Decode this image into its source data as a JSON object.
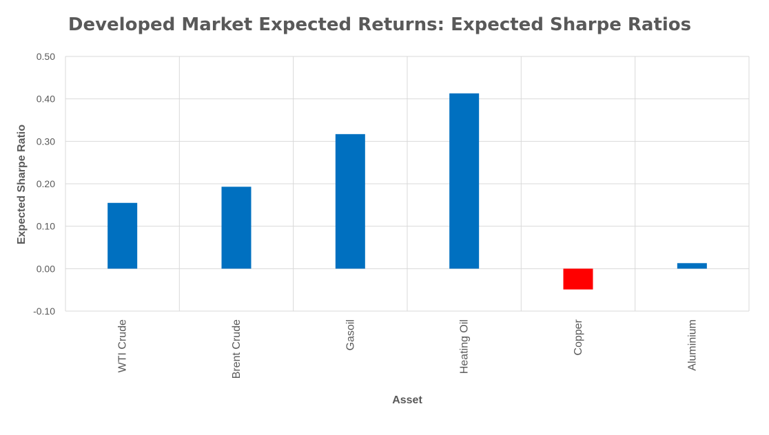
{
  "chart_data": {
    "type": "bar",
    "title": "Developed Market Expected Returns: Expected Sharpe Ratios",
    "xlabel": "Asset",
    "ylabel": "Expected Sharpe Ratio",
    "categories": [
      "WTI Crude",
      "Brent Crude",
      "Gasoil",
      "Heating Oil",
      "Copper",
      "Aluminium"
    ],
    "values": [
      0.155,
      0.193,
      0.317,
      0.413,
      -0.049,
      0.013
    ],
    "ylim": [
      -0.1,
      0.5
    ],
    "yticks": [
      0.5,
      0.4,
      0.3,
      0.2,
      0.1,
      0.0,
      -0.1
    ],
    "ytick_labels": [
      "0.50",
      "0.40",
      "0.30",
      "0.20",
      "0.10",
      "0.00",
      "-0.10"
    ],
    "grid": true,
    "legend": "none",
    "colors": {
      "positive": "#0070c0",
      "negative": "#ff0000",
      "grid": "#d9d9d9",
      "text": "#595959"
    }
  }
}
